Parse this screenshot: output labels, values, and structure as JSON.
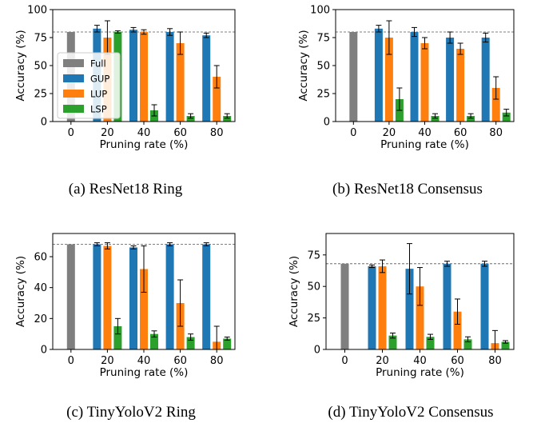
{
  "colors": {
    "Full": "#7f7f7f",
    "GUP": "#1f77b4",
    "LUP": "#ff7f0e",
    "LSP": "#2ca02c"
  },
  "chart_data": [
    {
      "type": "bar",
      "caption": "(a) ResNet18 Ring",
      "xlabel": "Pruning rate (%)",
      "ylabel": "Accuracy (%)",
      "categories": [
        "0",
        "20",
        "40",
        "60",
        "80"
      ],
      "ylim": [
        0,
        100
      ],
      "yticks": [
        0,
        25,
        50,
        75,
        100
      ],
      "reference_line": 80,
      "legend": {
        "placement": "center-left",
        "entries": [
          "Full",
          "GUP",
          "LUP",
          "LSP"
        ]
      },
      "series": [
        {
          "name": "Full",
          "values": [
            80,
            null,
            null,
            null,
            null
          ],
          "err": [
            0,
            null,
            null,
            null,
            null
          ]
        },
        {
          "name": "GUP",
          "values": [
            null,
            83,
            82,
            80,
            77
          ],
          "err": [
            null,
            3,
            2,
            3,
            2
          ]
        },
        {
          "name": "LUP",
          "values": [
            null,
            75,
            80,
            70,
            40
          ],
          "err": [
            null,
            15,
            2,
            10,
            10
          ]
        },
        {
          "name": "LSP",
          "values": [
            null,
            80,
            10,
            5,
            5
          ],
          "err": [
            null,
            1,
            5,
            2,
            2
          ]
        }
      ]
    },
    {
      "type": "bar",
      "caption": "(b) ResNet18 Consensus",
      "xlabel": "Pruning rate (%)",
      "ylabel": "Accuracy (%)",
      "categories": [
        "0",
        "20",
        "40",
        "60",
        "80"
      ],
      "ylim": [
        0,
        100
      ],
      "yticks": [
        0,
        25,
        50,
        75,
        100
      ],
      "reference_line": 80,
      "series": [
        {
          "name": "Full",
          "values": [
            80,
            null,
            null,
            null,
            null
          ],
          "err": [
            0,
            null,
            null,
            null,
            null
          ]
        },
        {
          "name": "GUP",
          "values": [
            null,
            83,
            80,
            75,
            75
          ],
          "err": [
            null,
            3,
            4,
            5,
            4
          ]
        },
        {
          "name": "LUP",
          "values": [
            null,
            75,
            70,
            65,
            30
          ],
          "err": [
            null,
            15,
            5,
            5,
            10
          ]
        },
        {
          "name": "LSP",
          "values": [
            null,
            20,
            5,
            5,
            8
          ],
          "err": [
            null,
            10,
            2,
            2,
            3
          ]
        }
      ]
    },
    {
      "type": "bar",
      "caption": "(c) TinyYoloV2 Ring",
      "xlabel": "Pruning rate (%)",
      "ylabel": "Accuracy (%)",
      "categories": [
        "0",
        "20",
        "40",
        "60",
        "80"
      ],
      "ylim": [
        0,
        75
      ],
      "yticks": [
        0,
        20,
        40,
        60
      ],
      "reference_line": 68,
      "series": [
        {
          "name": "Full",
          "values": [
            68,
            null,
            null,
            null,
            null
          ],
          "err": [
            0,
            null,
            null,
            null,
            null
          ]
        },
        {
          "name": "GUP",
          "values": [
            null,
            68,
            66,
            68,
            68
          ],
          "err": [
            null,
            1,
            1,
            1,
            1
          ]
        },
        {
          "name": "LUP",
          "values": [
            null,
            67,
            52,
            30,
            5
          ],
          "err": [
            null,
            2,
            15,
            15,
            10
          ]
        },
        {
          "name": "LSP",
          "values": [
            null,
            15,
            10,
            8,
            7
          ],
          "err": [
            null,
            5,
            2,
            2,
            1
          ]
        }
      ]
    },
    {
      "type": "bar",
      "caption": "(d) TinyYoloV2 Consensus",
      "xlabel": "Pruning rate (%)",
      "ylabel": "Accuracy (%)",
      "categories": [
        "0",
        "20",
        "40",
        "60",
        "80"
      ],
      "ylim": [
        0,
        92
      ],
      "yticks": [
        0,
        25,
        50,
        75
      ],
      "reference_line": 68,
      "series": [
        {
          "name": "Full",
          "values": [
            68,
            null,
            null,
            null,
            null
          ],
          "err": [
            0,
            null,
            null,
            null,
            null
          ]
        },
        {
          "name": "GUP",
          "values": [
            null,
            66,
            64,
            68,
            68
          ],
          "err": [
            null,
            1,
            20,
            2,
            2
          ]
        },
        {
          "name": "LUP",
          "values": [
            null,
            66,
            50,
            30,
            5
          ],
          "err": [
            null,
            5,
            15,
            10,
            10
          ]
        },
        {
          "name": "LSP",
          "values": [
            null,
            11,
            10,
            8,
            6
          ],
          "err": [
            null,
            2,
            2,
            2,
            1
          ]
        }
      ]
    }
  ]
}
